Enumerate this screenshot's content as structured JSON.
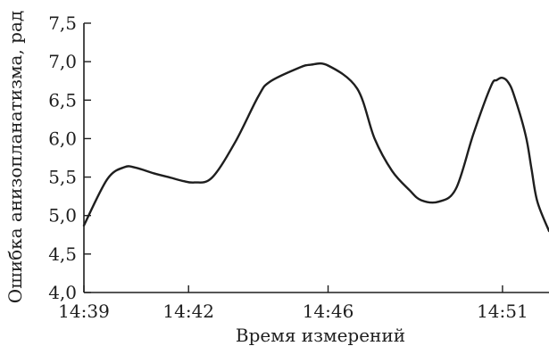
{
  "chart_data": {
    "type": "line",
    "title": "",
    "xlabel": "Время измерений",
    "ylabel": "Ошибка анизопланатизма, рад",
    "ylim": [
      4.0,
      7.5
    ],
    "y_ticks": [
      "4,0",
      "4,5",
      "5,0",
      "5,5",
      "6,0",
      "6,5",
      "7,0",
      "7,5"
    ],
    "y_tick_values": [
      4.0,
      4.5,
      5.0,
      5.5,
      6.0,
      6.5,
      7.0,
      7.5
    ],
    "x_unit": "minutes",
    "xlim": [
      "14:39",
      "14:52:20"
    ],
    "x_ticks": [
      "14:39",
      "14:42",
      "14:46",
      "14:51"
    ],
    "x_tick_values": [
      "14:39",
      "14:42",
      "14:46",
      "14:51"
    ],
    "grid": false,
    "series": [
      {
        "color": "#1e1e1e",
        "x": [
          "14:39",
          "14:39:40",
          "14:40:10",
          "14:40:30",
          "14:41",
          "14:41:30",
          "14:41:50",
          "14:42:10",
          "14:42:40",
          "14:43:20",
          "14:44",
          "14:44:20",
          "14:45:10",
          "14:45:30",
          "14:46",
          "14:46:50",
          "14:47:20",
          "14:47:50",
          "14:48:20",
          "14:48:40",
          "14:49:10",
          "14:49:40",
          "14:50:10",
          "14:50:40",
          "14:50:50",
          "14:51",
          "14:51:10",
          "14:51:20",
          "14:51:40",
          "14:51:50",
          "14:52",
          "14:52:20"
        ],
        "values": [
          4.87,
          5.47,
          5.63,
          5.62,
          5.55,
          5.49,
          5.45,
          5.43,
          5.49,
          5.95,
          6.55,
          6.74,
          6.92,
          6.96,
          6.95,
          6.65,
          6.0,
          5.58,
          5.33,
          5.2,
          5.18,
          5.35,
          6.06,
          6.68,
          6.76,
          6.79,
          6.73,
          6.56,
          6.04,
          5.6,
          5.18,
          4.8
        ]
      }
    ]
  }
}
